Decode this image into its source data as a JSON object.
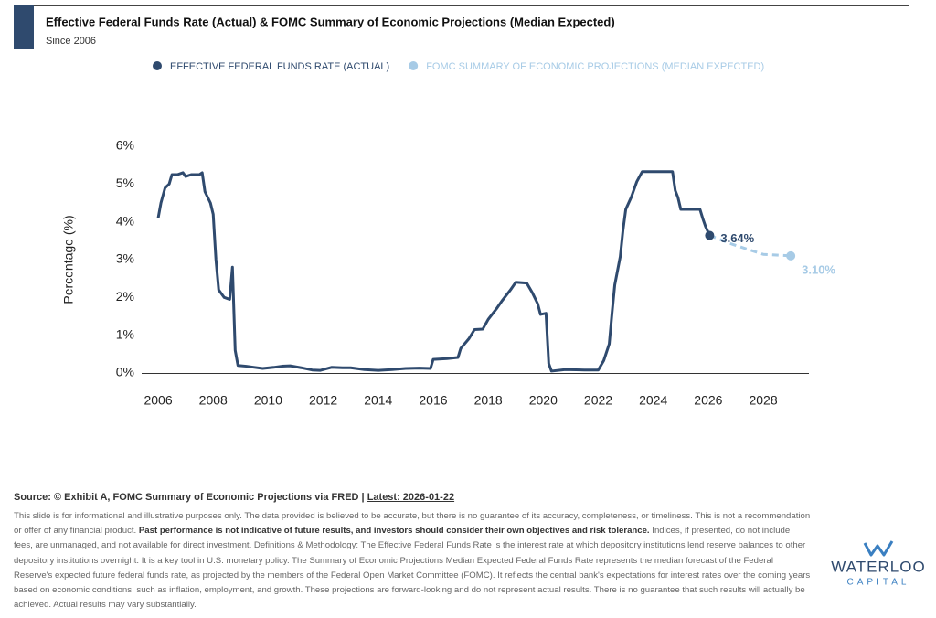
{
  "chart_data": {
    "type": "line",
    "title": "Effective Federal Funds Rate (Actual) & FOMC Summary of Economic Projections (Median Expected)",
    "subtitle": "Since 2006",
    "y_label": "Percentage (%)",
    "xlim": [
      2005.4,
      2029.66
    ],
    "ylim": [
      0,
      6
    ],
    "xticks": [
      2006,
      2008,
      2010,
      2012,
      2014,
      2016,
      2018,
      2020,
      2022,
      2024,
      2026,
      2028
    ],
    "yticks": [
      {
        "value": 0,
        "label": "0%"
      },
      {
        "value": 1,
        "label": "1%"
      },
      {
        "value": 2,
        "label": "2%"
      },
      {
        "value": 3,
        "label": "3%"
      },
      {
        "value": 4,
        "label": "4%"
      },
      {
        "value": 5,
        "label": "5%"
      },
      {
        "value": 6,
        "label": "6%"
      }
    ],
    "grid": false,
    "series": [
      {
        "name": "EFFECTIVE FEDERAL FUNDS RATE (ACTUAL)",
        "color": "#2f4a6e",
        "dashed": false,
        "x": [
          2006.0,
          2006.1,
          2006.25,
          2006.4,
          2006.5,
          2006.7,
          2006.9,
          2007.0,
          2007.2,
          2007.5,
          2007.6,
          2007.7,
          2007.9,
          2008.0,
          2008.1,
          2008.2,
          2008.3,
          2008.4,
          2008.6,
          2008.7,
          2008.8,
          2008.9,
          2009.2,
          2009.5,
          2009.8,
          2010.2,
          2010.5,
          2010.8,
          2011.2,
          2011.6,
          2011.9,
          2012.3,
          2012.7,
          2013.0,
          2013.5,
          2014.0,
          2014.5,
          2015.0,
          2015.5,
          2015.9,
          2016.0,
          2016.5,
          2016.9,
          2017.0,
          2017.3,
          2017.5,
          2017.8,
          2018.0,
          2018.3,
          2018.5,
          2018.8,
          2019.0,
          2019.4,
          2019.6,
          2019.8,
          2019.9,
          2020.1,
          2020.2,
          2020.3,
          2020.8,
          2021.5,
          2022.0,
          2022.2,
          2022.4,
          2022.5,
          2022.6,
          2022.8,
          2022.9,
          2023.0,
          2023.2,
          2023.4,
          2023.6,
          2024.0,
          2024.7,
          2024.8,
          2024.9,
          2025.0,
          2025.7,
          2025.8,
          2025.9,
          2026.05
        ],
        "values": [
          4.1,
          4.5,
          4.9,
          5.0,
          5.25,
          5.25,
          5.3,
          5.2,
          5.25,
          5.25,
          5.3,
          4.8,
          4.5,
          4.2,
          3.0,
          2.2,
          2.1,
          2.0,
          1.95,
          2.8,
          0.6,
          0.2,
          0.18,
          0.15,
          0.12,
          0.15,
          0.18,
          0.19,
          0.14,
          0.08,
          0.07,
          0.15,
          0.14,
          0.14,
          0.09,
          0.07,
          0.09,
          0.12,
          0.13,
          0.12,
          0.36,
          0.38,
          0.41,
          0.65,
          0.91,
          1.15,
          1.16,
          1.42,
          1.7,
          1.91,
          2.19,
          2.4,
          2.38,
          2.13,
          1.83,
          1.55,
          1.58,
          0.25,
          0.05,
          0.09,
          0.08,
          0.08,
          0.33,
          0.77,
          1.58,
          2.33,
          3.08,
          3.78,
          4.33,
          4.65,
          5.06,
          5.33,
          5.33,
          5.33,
          4.83,
          4.64,
          4.33,
          4.33,
          4.09,
          3.88,
          3.64
        ],
        "value_labels": [
          null,
          null,
          null,
          null,
          null,
          null,
          null,
          null,
          null,
          null,
          null,
          null,
          null,
          null,
          null,
          null,
          null,
          null,
          null,
          null,
          null,
          null,
          null,
          null,
          null,
          null,
          null,
          null,
          null,
          null,
          null,
          null,
          null,
          null,
          null,
          null,
          null,
          null,
          null,
          null,
          null,
          null,
          null,
          null,
          null,
          null,
          null,
          null,
          null,
          null,
          null,
          null,
          null,
          null,
          null,
          null,
          null,
          null,
          null,
          null,
          null,
          null,
          null,
          null,
          null,
          null,
          null,
          null,
          null,
          null,
          null,
          null,
          null,
          null,
          null,
          null,
          null,
          null,
          null,
          null,
          "3.64%"
        ]
      },
      {
        "name": "FOMC SUMMARY OF ECONOMIC PROJECTIONS (MEDIAN EXPECTED)",
        "color": "#a7cbe6",
        "dashed": true,
        "x": [
          2026.05,
          2026.9,
          2028.0,
          2029.0
        ],
        "values": [
          3.64,
          3.4,
          3.14,
          3.1
        ],
        "value_labels": [
          null,
          null,
          null,
          "3.10%"
        ]
      }
    ]
  },
  "source": "Source: © Exhibit A, FOMC Summary of Economic Projections via FRED |",
  "latest": "Latest: 2026-01-22",
  "disclaimer": [
    "This slide is for informational and illustrative purposes only. The data provided is believed to be accurate, but there is no guarantee of its accuracy, completeness, or timeliness. This is not a recommendation or offer of any financial product. ",
    "Past performance is not indicative of future results, and investors should consider their own objectives and risk tolerance.",
    " Indices, if presented, do not include fees, are unmanaged, and not available for direct investment. Definitions & Methodology: The Effective Federal Funds Rate is the interest rate at which depository institutions lend reserve balances to other depository institutions overnight. It is a key tool in U.S. monetary policy. The Summary of Economic Projections Median Expected Federal Funds Rate represents the median forecast of the Federal Reserve's expected future federal funds rate, as projected by the members of the Federal Open Market Committee (FOMC). It reflects the central bank's expectations for interest rates over the coming years based on economic conditions, such as inflation, employment, and growth. These projections are forward-looking and do not represent actual results. There is no guarantee that such results will actually be achieved. Actual results may vary substantially."
  ],
  "logo": {
    "name": "WATERLOO",
    "sub": "CAPITAL"
  }
}
